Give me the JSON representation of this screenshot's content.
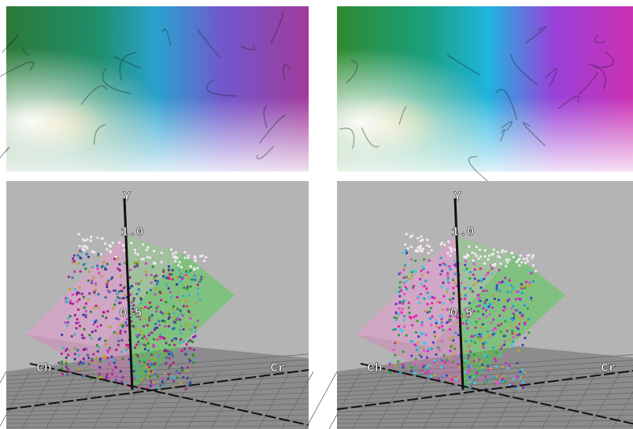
{
  "panels": [
    {
      "axis_labels": {
        "y": "Y",
        "cb": "Cb",
        "cr": "Cr"
      },
      "ticks": [
        "1.0",
        "0.5"
      ]
    },
    {
      "axis_labels": {
        "y": "Y",
        "cb": "Cb",
        "cr": "Cr"
      },
      "ticks": [
        "1.0",
        "0.5"
      ]
    }
  ]
}
